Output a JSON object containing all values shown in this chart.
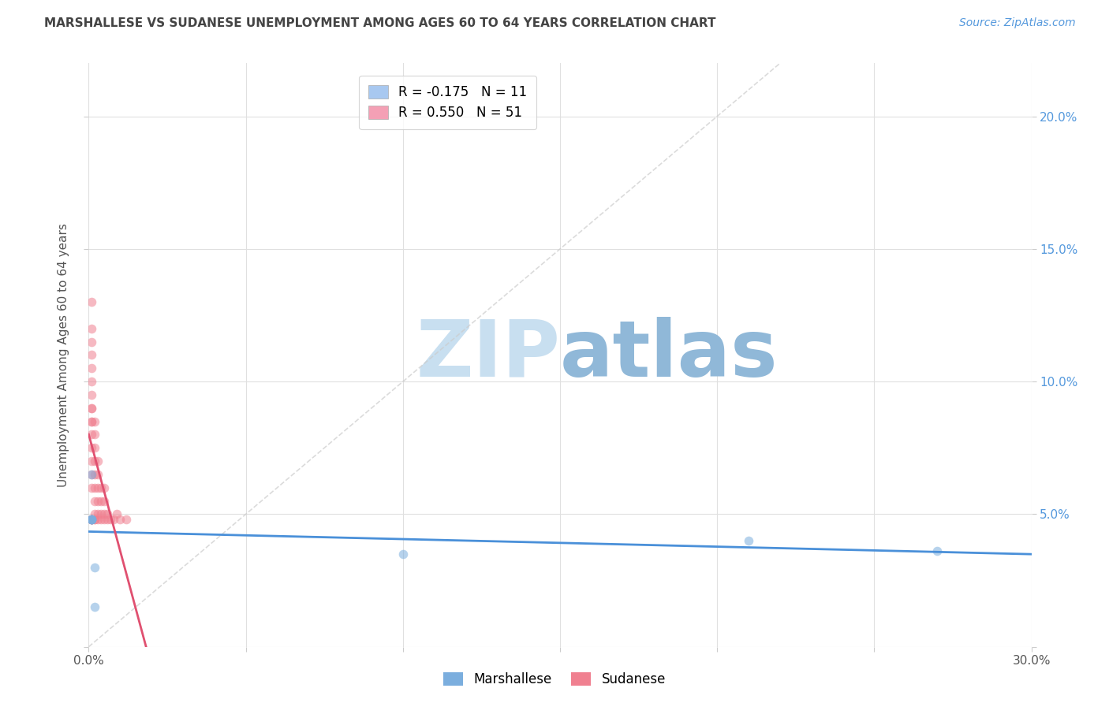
{
  "title": "MARSHALLESE VS SUDANESE UNEMPLOYMENT AMONG AGES 60 TO 64 YEARS CORRELATION CHART",
  "source": "Source: ZipAtlas.com",
  "ylabel": "Unemployment Among Ages 60 to 64 years",
  "xlim": [
    0.0,
    0.3
  ],
  "ylim": [
    0.0,
    0.22
  ],
  "xticks": [
    0.0,
    0.05,
    0.1,
    0.15,
    0.2,
    0.25,
    0.3
  ],
  "yticks_right": [
    0.0,
    0.05,
    0.1,
    0.15,
    0.2
  ],
  "legend_entries": [
    {
      "label": "R = -0.175   N = 11",
      "color": "#a8c8f0"
    },
    {
      "label": "R = 0.550   N = 51",
      "color": "#f4a0b5"
    }
  ],
  "marshallese_x": [
    0.001,
    0.001,
    0.001,
    0.001,
    0.001,
    0.001,
    0.002,
    0.002,
    0.1,
    0.21,
    0.27
  ],
  "marshallese_y": [
    0.048,
    0.065,
    0.048,
    0.048,
    0.048,
    0.048,
    0.03,
    0.015,
    0.035,
    0.04,
    0.036
  ],
  "sudanese_x": [
    0.001,
    0.001,
    0.001,
    0.001,
    0.001,
    0.001,
    0.001,
    0.001,
    0.001,
    0.001,
    0.001,
    0.001,
    0.001,
    0.001,
    0.001,
    0.001,
    0.001,
    0.001,
    0.001,
    0.001,
    0.002,
    0.002,
    0.002,
    0.002,
    0.002,
    0.002,
    0.002,
    0.002,
    0.002,
    0.002,
    0.003,
    0.003,
    0.003,
    0.003,
    0.003,
    0.003,
    0.004,
    0.004,
    0.004,
    0.004,
    0.005,
    0.005,
    0.005,
    0.005,
    0.006,
    0.006,
    0.007,
    0.008,
    0.009,
    0.01,
    0.012
  ],
  "sudanese_y": [
    0.048,
    0.048,
    0.048,
    0.048,
    0.06,
    0.065,
    0.07,
    0.075,
    0.08,
    0.085,
    0.085,
    0.09,
    0.09,
    0.095,
    0.1,
    0.105,
    0.11,
    0.115,
    0.12,
    0.13,
    0.048,
    0.048,
    0.05,
    0.055,
    0.06,
    0.065,
    0.07,
    0.075,
    0.08,
    0.085,
    0.048,
    0.05,
    0.055,
    0.06,
    0.065,
    0.07,
    0.048,
    0.05,
    0.055,
    0.06,
    0.048,
    0.05,
    0.055,
    0.06,
    0.048,
    0.05,
    0.048,
    0.048,
    0.05,
    0.048,
    0.048
  ],
  "marshallese_color": "#7baede",
  "sudanese_color": "#f08090",
  "marshallese_line_color": "#4a90d9",
  "sudanese_line_color": "#e05070",
  "regression_line_color_dashed": "#cccccc",
  "marker_size": 70,
  "marker_alpha": 0.55,
  "background_color": "#ffffff",
  "grid_color": "#e0e0e0",
  "title_color": "#444444",
  "axis_label_color": "#555555",
  "tick_color_right": "#5599dd",
  "watermark_zip_color": "#c8dff0",
  "watermark_atlas_color": "#90b8d8",
  "watermark_fontsize": 72
}
